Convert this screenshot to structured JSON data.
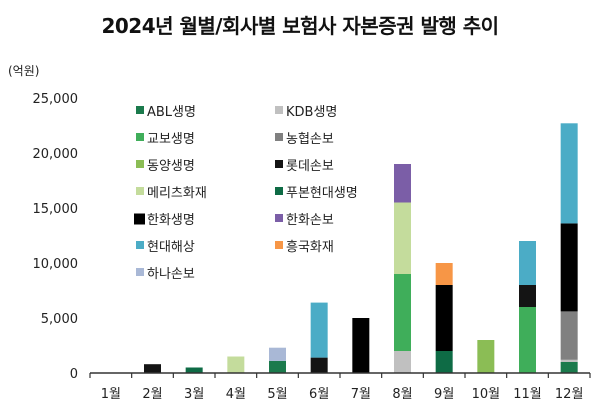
{
  "chart_data": {
    "type": "bar",
    "stacked": true,
    "title": "2024년 월별/회사별 보험사 자본증권 발행 추이",
    "ylabel": "(억원)",
    "xlabel": "",
    "ylim": [
      0,
      25000
    ],
    "yticks": [
      0,
      5000,
      10000,
      15000,
      20000,
      25000
    ],
    "ytick_labels": [
      "0",
      "5,000",
      "10,000",
      "15,000",
      "20,000",
      "25,000"
    ],
    "grid": false,
    "legend_position": "top-left",
    "categories": [
      "1월",
      "2월",
      "3월",
      "4월",
      "5월",
      "6월",
      "7월",
      "8월",
      "9월",
      "10월",
      "11월",
      "12월"
    ],
    "series": [
      {
        "name": "ABL생명",
        "color": "#1b7a4c",
        "values": [
          0,
          0,
          0,
          0,
          1100,
          0,
          0,
          0,
          0,
          0,
          0,
          1000
        ]
      },
      {
        "name": "KDB생명",
        "color": "#c0c0c0",
        "values": [
          0,
          0,
          0,
          0,
          0,
          0,
          0,
          2000,
          0,
          0,
          0,
          200
        ]
      },
      {
        "name": "교보생명",
        "color": "#3fae5a",
        "values": [
          0,
          0,
          0,
          0,
          0,
          0,
          0,
          7000,
          0,
          0,
          6000,
          0
        ]
      },
      {
        "name": "농협손보",
        "color": "#808080",
        "values": [
          0,
          0,
          0,
          0,
          0,
          0,
          0,
          0,
          0,
          0,
          0,
          4400
        ]
      },
      {
        "name": "동양생명",
        "color": "#8bbd55",
        "values": [
          0,
          0,
          0,
          0,
          0,
          0,
          0,
          0,
          0,
          3000,
          0,
          0
        ]
      },
      {
        "name": "롯데손보",
        "color": "#141414",
        "values": [
          0,
          800,
          0,
          0,
          0,
          1400,
          0,
          0,
          0,
          0,
          2000,
          0
        ]
      },
      {
        "name": "메리츠화재",
        "color": "#c4dc9c",
        "values": [
          0,
          0,
          0,
          1500,
          0,
          0,
          0,
          6500,
          0,
          0,
          0,
          0
        ]
      },
      {
        "name": "푸본현대생명",
        "color": "#0e6b45",
        "values": [
          0,
          0,
          500,
          0,
          0,
          0,
          0,
          0,
          2000,
          0,
          0,
          0
        ]
      },
      {
        "name": "한화생명",
        "color": "#000000",
        "values": [
          0,
          0,
          0,
          0,
          0,
          0,
          5000,
          0,
          6000,
          0,
          0,
          8000
        ]
      },
      {
        "name": "한화손보",
        "color": "#7b5ea7",
        "values": [
          0,
          0,
          0,
          0,
          0,
          0,
          0,
          3500,
          0,
          0,
          0,
          0
        ]
      },
      {
        "name": "현대해상",
        "color": "#4bacc6",
        "values": [
          0,
          0,
          0,
          0,
          0,
          5000,
          0,
          0,
          0,
          0,
          4000,
          9100
        ]
      },
      {
        "name": "흥국화재",
        "color": "#f79646",
        "values": [
          0,
          0,
          0,
          0,
          0,
          0,
          0,
          0,
          2000,
          0,
          0,
          0
        ]
      },
      {
        "name": "하나손보",
        "color": "#a9b8d6",
        "values": [
          0,
          0,
          0,
          0,
          1200,
          0,
          0,
          0,
          0,
          0,
          0,
          0
        ]
      }
    ]
  }
}
